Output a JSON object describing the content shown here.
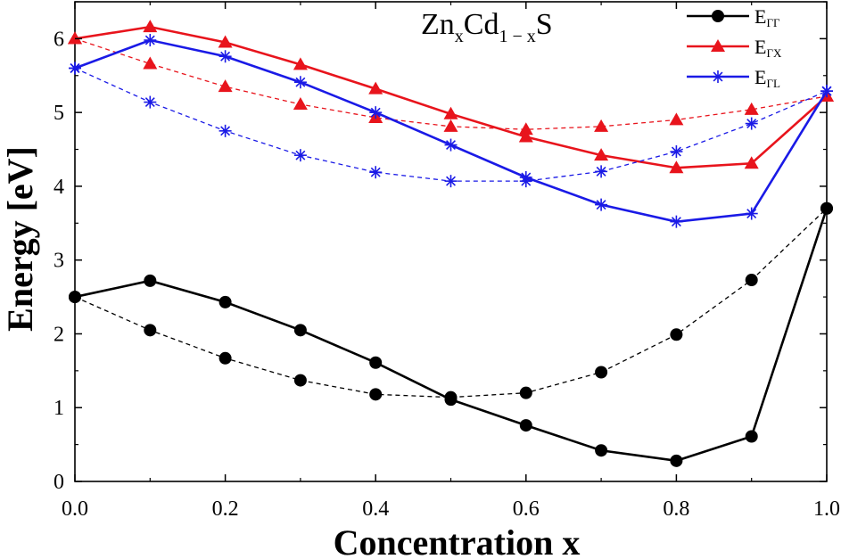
{
  "chart_data": {
    "type": "line",
    "title_parts": {
      "base1": "Zn",
      "sub1": "x",
      "base2": "Cd",
      "sub2": "1 − x",
      "base3": "S"
    },
    "xlabel": "Concentration x",
    "ylabel": "Energy [eV]",
    "xlim": [
      0,
      1
    ],
    "ylim": [
      0,
      6.5
    ],
    "xticks": [
      "0.0",
      "0.2",
      "0.4",
      "0.6",
      "0.8",
      "1.0"
    ],
    "xtick_values": [
      0,
      0.2,
      0.4,
      0.6,
      0.8,
      1.0
    ],
    "yticks": [
      "0",
      "1",
      "2",
      "3",
      "4",
      "5",
      "6"
    ],
    "ytick_values": [
      0,
      1,
      2,
      3,
      4,
      5,
      6
    ],
    "x": [
      0.0,
      0.1,
      0.2,
      0.3,
      0.4,
      0.5,
      0.6,
      0.7,
      0.8,
      0.9,
      1.0
    ],
    "series": [
      {
        "name": "E_ΓΓ",
        "label_base": "E",
        "label_sub": "ΓΓ",
        "color": "#000000",
        "marker": "circle",
        "solid": [
          2.5,
          2.72,
          2.43,
          2.05,
          1.61,
          1.11,
          0.76,
          0.42,
          0.28,
          0.61,
          3.7
        ],
        "dashed": [
          2.5,
          2.05,
          1.67,
          1.37,
          1.18,
          1.14,
          1.2,
          1.48,
          1.99,
          2.73,
          3.7
        ]
      },
      {
        "name": "E_ΓX",
        "label_base": "E",
        "label_sub": "ΓX",
        "color": "#e8141c",
        "marker": "triangle",
        "solid": [
          6.0,
          6.16,
          5.95,
          5.65,
          5.32,
          4.98,
          4.67,
          4.42,
          4.25,
          4.31,
          5.22
        ],
        "dashed": [
          6.0,
          5.66,
          5.35,
          5.11,
          4.93,
          4.81,
          4.77,
          4.81,
          4.9,
          5.04,
          5.22
        ]
      },
      {
        "name": "E_ΓL",
        "label_base": "E",
        "label_sub": "ΓL",
        "color": "#1a1ae6",
        "marker": "asterisk",
        "solid": [
          5.6,
          5.98,
          5.76,
          5.41,
          5.0,
          4.56,
          4.12,
          3.75,
          3.52,
          3.63,
          5.29
        ],
        "dashed": [
          5.6,
          5.14,
          4.75,
          4.42,
          4.19,
          4.07,
          4.07,
          4.2,
          4.47,
          4.85,
          5.29
        ]
      }
    ],
    "legend_position": "top-right",
    "grid": false
  }
}
